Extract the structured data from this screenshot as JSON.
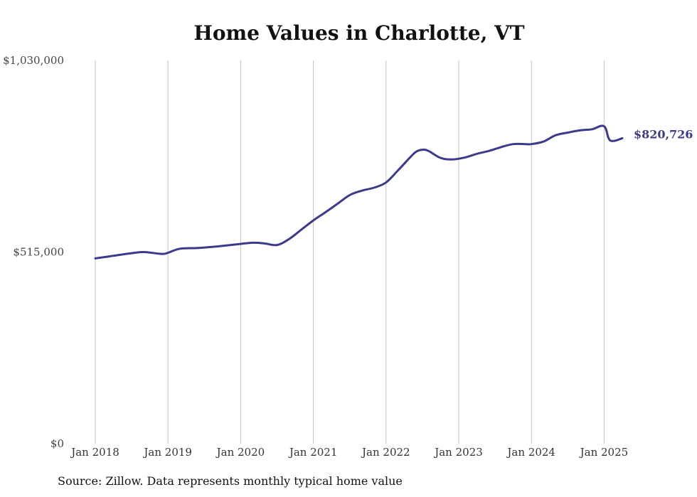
{
  "chart_data": {
    "type": "line",
    "title": "Home Values in Charlotte, VT",
    "source": "Source: Zillow. Data represents monthly typical home value",
    "xlabel": "",
    "ylabel": "",
    "y_ticks": [
      "$0",
      "$515,000",
      "$1,030,000"
    ],
    "ylim": [
      0,
      1030000
    ],
    "x_ticks": [
      "Jan 2018",
      "Jan 2019",
      "Jan 2020",
      "Jan 2021",
      "Jan 2022",
      "Jan 2023",
      "Jan 2024",
      "Jan 2025"
    ],
    "grid": "vertical",
    "line_color": "#3d3a8c",
    "end_label": "$820,726",
    "series": [
      {
        "x": [
          "2018-01",
          "2018-04",
          "2018-07",
          "2018-09",
          "2018-12",
          "2019-01",
          "2019-03",
          "2019-06",
          "2019-09",
          "2019-12",
          "2020-03",
          "2020-05",
          "2020-07",
          "2020-09",
          "2020-11",
          "2021-01",
          "2021-03",
          "2021-05",
          "2021-07",
          "2021-09",
          "2021-11",
          "2022-01",
          "2022-03",
          "2022-05",
          "2022-06",
          "2022-07",
          "2022-08",
          "2022-10",
          "2022-12",
          "2023-02",
          "2023-04",
          "2023-06",
          "2023-08",
          "2023-10",
          "2023-12",
          "2024-01",
          "2024-03",
          "2024-05",
          "2024-07",
          "2024-09",
          "2024-11",
          "2025-01",
          "2025-02",
          "2025-04"
        ],
        "values": [
          498000,
          505000,
          512000,
          515000,
          510000,
          513000,
          524000,
          526000,
          530000,
          535000,
          540000,
          538000,
          534000,
          550000,
          575000,
          600000,
          622000,
          645000,
          668000,
          680000,
          688000,
          702000,
          735000,
          770000,
          785000,
          790000,
          787000,
          768000,
          764000,
          769000,
          779000,
          787000,
          797000,
          805000,
          805000,
          805000,
          812000,
          829000,
          836000,
          842000,
          845000,
          853000,
          815000,
          820726
        ]
      }
    ]
  }
}
